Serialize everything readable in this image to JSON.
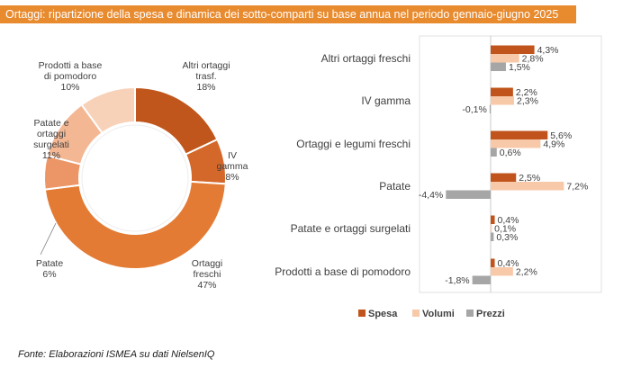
{
  "title": "Ortaggi: ripartizione della spesa e dinamica dei sotto-comparti su base annua nel periodo gennaio-giugno 2025",
  "source": "Fonte: Elaborazioni ISMEA su dati NielsenIQ",
  "colors": {
    "title_bg": "#e88a2e",
    "spesa": "#c0541c",
    "volumi": "#f8c9a9",
    "prezzi": "#a6a6a6"
  },
  "chart_data": [
    {
      "type": "pie",
      "subtype": "donut",
      "title": "",
      "slices": [
        {
          "name": "Altri ortaggi trasf.",
          "label_lines": [
            "Altri ortaggi",
            "trasf."
          ],
          "pct_label": "18%",
          "value": 18,
          "color": "#c0561c"
        },
        {
          "name": "IV gamma",
          "label_lines": [
            "IV",
            "gamma"
          ],
          "pct_label": "8%",
          "value": 8,
          "color": "#d4682a"
        },
        {
          "name": "Ortaggi freschi",
          "label_lines": [
            "Ortaggi",
            "freschi"
          ],
          "pct_label": "47%",
          "value": 47,
          "color": "#e47b34"
        },
        {
          "name": "Patate",
          "label_lines": [
            "Patate"
          ],
          "pct_label": "6%",
          "value": 6,
          "color": "#ec9566"
        },
        {
          "name": "Patate e ortaggi surgelati",
          "label_lines": [
            "Patate e",
            "ortaggi",
            "surgelati"
          ],
          "pct_label": "11%",
          "value": 11,
          "color": "#f3b794"
        },
        {
          "name": "Prodotti a base di pomodoro",
          "label_lines": [
            "Prodotti a base",
            "di pomodoro"
          ],
          "pct_label": "10%",
          "value": 10,
          "color": "#f8d2b8"
        }
      ]
    },
    {
      "type": "bar",
      "orientation": "horizontal",
      "title": "",
      "unit": "%",
      "categories": [
        "Altri ortaggi freschi",
        "IV gamma",
        "Ortaggi e legumi freschi",
        "Patate",
        "Patate e ortaggi surgelati",
        "Prodotti a base di pomodoro"
      ],
      "series": [
        {
          "name": "Spesa",
          "color": "#c0541c",
          "values": [
            4.3,
            2.2,
            5.6,
            2.5,
            0.4,
            0.4
          ],
          "labels": [
            "4,3%",
            "2,2%",
            "5,6%",
            "2,5%",
            "0,4%",
            "0,4%"
          ]
        },
        {
          "name": "Volumi",
          "color": "#f8c9a9",
          "values": [
            2.8,
            2.3,
            4.9,
            7.2,
            0.1,
            2.2
          ],
          "labels": [
            "2,8%",
            "2,3%",
            "4,9%",
            "7,2%",
            "0,1%",
            "2,2%"
          ]
        },
        {
          "name": "Prezzi",
          "color": "#a6a6a6",
          "values": [
            1.5,
            -0.1,
            0.6,
            -4.4,
            0.3,
            -1.8
          ],
          "labels": [
            "1,5%",
            "-0,1%",
            "0,6%",
            "-4,4%",
            "0,3%",
            "-1,8%"
          ]
        }
      ],
      "xlim": [
        -5.5,
        8.5
      ],
      "legend": [
        "Spesa",
        "Volumi",
        "Prezzi"
      ],
      "legend_position": "bottom",
      "grid": false
    }
  ]
}
